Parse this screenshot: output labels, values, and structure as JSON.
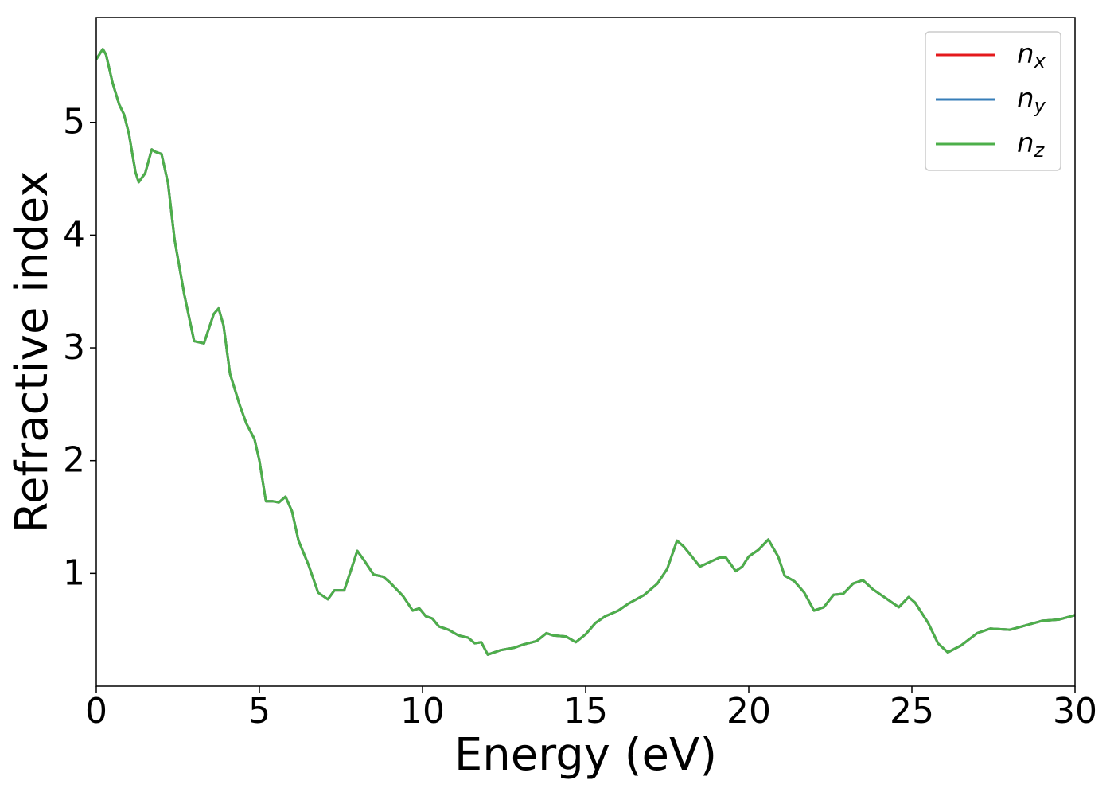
{
  "chart_data": {
    "type": "line",
    "xlabel": "Energy (eV)",
    "ylabel": "Refractive index",
    "x": [
      0,
      0.2,
      0.3,
      0.5,
      0.7,
      0.85,
      1.0,
      1.2,
      1.3,
      1.5,
      1.7,
      1.8,
      2.0,
      2.2,
      2.4,
      2.7,
      3.0,
      3.3,
      3.6,
      3.75,
      3.9,
      4.1,
      4.4,
      4.6,
      4.85,
      5.0,
      5.2,
      5.4,
      5.6,
      5.8,
      6.0,
      6.2,
      6.5,
      6.8,
      7.1,
      7.3,
      7.6,
      7.9,
      8.0,
      8.2,
      8.5,
      8.8,
      9.0,
      9.4,
      9.7,
      9.9,
      10.1,
      10.3,
      10.5,
      10.8,
      11.1,
      11.4,
      11.6,
      11.8,
      12.0,
      12.4,
      12.8,
      13.1,
      13.5,
      13.8,
      14.0,
      14.4,
      14.7,
      15.0,
      15.3,
      15.6,
      16.0,
      16.3,
      16.8,
      17.2,
      17.5,
      17.8,
      18.0,
      18.2,
      18.5,
      18.8,
      19.1,
      19.3,
      19.6,
      19.8,
      20.0,
      20.3,
      20.6,
      20.9,
      21.1,
      21.4,
      21.7,
      22.0,
      22.3,
      22.6,
      22.9,
      23.2,
      23.5,
      23.8,
      24.2,
      24.6,
      24.9,
      25.1,
      25.5,
      25.8,
      26.1,
      26.5,
      27.0,
      27.4,
      28.0,
      28.5,
      29.0,
      29.5,
      30.0
    ],
    "series": [
      {
        "name": "nx",
        "color": "#e41a1c",
        "values": [
          5.56,
          5.65,
          5.6,
          5.35,
          5.16,
          5.07,
          4.9,
          4.56,
          4.47,
          4.55,
          4.76,
          4.74,
          4.72,
          4.46,
          3.96,
          3.47,
          3.06,
          3.04,
          3.3,
          3.35,
          3.2,
          2.77,
          2.49,
          2.33,
          2.19,
          2.0,
          1.64,
          1.64,
          1.63,
          1.68,
          1.55,
          1.29,
          1.08,
          0.83,
          0.77,
          0.85,
          0.85,
          1.11,
          1.2,
          1.12,
          0.99,
          0.97,
          0.92,
          0.8,
          0.67,
          0.69,
          0.62,
          0.6,
          0.53,
          0.5,
          0.45,
          0.43,
          0.38,
          0.39,
          0.28,
          0.32,
          0.34,
          0.37,
          0.4,
          0.47,
          0.45,
          0.44,
          0.39,
          0.46,
          0.56,
          0.62,
          0.67,
          0.73,
          0.81,
          0.91,
          1.04,
          1.29,
          1.24,
          1.17,
          1.06,
          1.1,
          1.14,
          1.14,
          1.02,
          1.06,
          1.15,
          1.21,
          1.3,
          1.15,
          0.98,
          0.93,
          0.83,
          0.67,
          0.7,
          0.81,
          0.82,
          0.91,
          0.94,
          0.86,
          0.78,
          0.7,
          0.79,
          0.74,
          0.56,
          0.38,
          0.3,
          0.36,
          0.47,
          0.51,
          0.5,
          0.54,
          0.58,
          0.59,
          0.63
        ]
      },
      {
        "name": "ny",
        "color": "#377eb8",
        "values": [
          5.56,
          5.65,
          5.6,
          5.35,
          5.16,
          5.07,
          4.9,
          4.56,
          4.47,
          4.55,
          4.76,
          4.74,
          4.72,
          4.46,
          3.96,
          3.47,
          3.06,
          3.04,
          3.3,
          3.35,
          3.2,
          2.77,
          2.49,
          2.33,
          2.19,
          2.0,
          1.64,
          1.64,
          1.63,
          1.68,
          1.55,
          1.29,
          1.08,
          0.83,
          0.77,
          0.85,
          0.85,
          1.11,
          1.2,
          1.12,
          0.99,
          0.97,
          0.92,
          0.8,
          0.67,
          0.69,
          0.62,
          0.6,
          0.53,
          0.5,
          0.45,
          0.43,
          0.38,
          0.39,
          0.28,
          0.32,
          0.34,
          0.37,
          0.4,
          0.47,
          0.45,
          0.44,
          0.39,
          0.46,
          0.56,
          0.62,
          0.67,
          0.73,
          0.81,
          0.91,
          1.04,
          1.29,
          1.24,
          1.17,
          1.06,
          1.1,
          1.14,
          1.14,
          1.02,
          1.06,
          1.15,
          1.21,
          1.3,
          1.15,
          0.98,
          0.93,
          0.83,
          0.67,
          0.7,
          0.81,
          0.82,
          0.91,
          0.94,
          0.86,
          0.78,
          0.7,
          0.79,
          0.74,
          0.56,
          0.38,
          0.3,
          0.36,
          0.47,
          0.51,
          0.5,
          0.54,
          0.58,
          0.59,
          0.63
        ]
      },
      {
        "name": "nz",
        "color": "#4daf4a",
        "values": [
          5.56,
          5.65,
          5.6,
          5.35,
          5.16,
          5.07,
          4.9,
          4.56,
          4.47,
          4.55,
          4.76,
          4.74,
          4.72,
          4.46,
          3.96,
          3.47,
          3.06,
          3.04,
          3.3,
          3.35,
          3.2,
          2.77,
          2.49,
          2.33,
          2.19,
          2.0,
          1.64,
          1.64,
          1.63,
          1.68,
          1.55,
          1.29,
          1.08,
          0.83,
          0.77,
          0.85,
          0.85,
          1.11,
          1.2,
          1.12,
          0.99,
          0.97,
          0.92,
          0.8,
          0.67,
          0.69,
          0.62,
          0.6,
          0.53,
          0.5,
          0.45,
          0.43,
          0.38,
          0.39,
          0.28,
          0.32,
          0.34,
          0.37,
          0.4,
          0.47,
          0.45,
          0.44,
          0.39,
          0.46,
          0.56,
          0.62,
          0.67,
          0.73,
          0.81,
          0.91,
          1.04,
          1.29,
          1.24,
          1.17,
          1.06,
          1.1,
          1.14,
          1.14,
          1.02,
          1.06,
          1.15,
          1.21,
          1.3,
          1.15,
          0.98,
          0.93,
          0.83,
          0.67,
          0.7,
          0.81,
          0.82,
          0.91,
          0.94,
          0.86,
          0.78,
          0.7,
          0.79,
          0.74,
          0.56,
          0.38,
          0.3,
          0.36,
          0.47,
          0.51,
          0.5,
          0.54,
          0.58,
          0.59,
          0.63
        ]
      }
    ],
    "xlim": [
      0,
      30
    ],
    "xticks": [
      0,
      5,
      10,
      15,
      20,
      25,
      30
    ],
    "ylim": [
      0,
      5.93
    ],
    "yticks": [
      1,
      2,
      3,
      4,
      5
    ],
    "grid": false,
    "legend": "upper right"
  }
}
